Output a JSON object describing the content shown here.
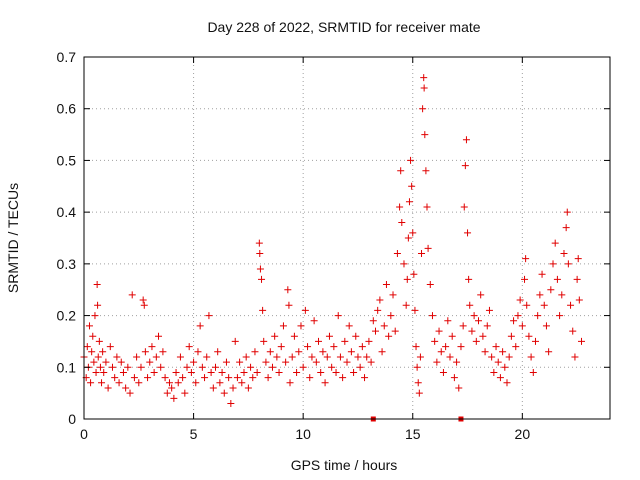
{
  "chart_data": {
    "type": "scatter",
    "title": "Day 228 of 2022, SRMTID for receiver mate",
    "xlabel": "GPS time / hours",
    "ylabel": "SRMTID / TECUs",
    "xlim": [
      0,
      24
    ],
    "ylim": [
      0,
      0.7
    ],
    "xticks": [
      0,
      5,
      10,
      15,
      20
    ],
    "yticks": [
      0,
      0.1,
      0.2,
      0.3,
      0.4,
      0.5,
      0.6,
      0.7
    ],
    "xtick_labels": [
      "0",
      "5",
      "10",
      "15",
      "20"
    ],
    "ytick_labels": [
      "0",
      "0.1",
      "0.2",
      "0.3",
      "0.4",
      "0.5",
      "0.6",
      "0.7"
    ],
    "grid": true,
    "marker": "+",
    "color": "#e00000",
    "baseline_markers_x": [
      13.2,
      17.2
    ],
    "series": [
      {
        "name": "SRMTID",
        "points": [
          [
            0.0,
            0.12
          ],
          [
            0.1,
            0.08
          ],
          [
            0.15,
            0.14
          ],
          [
            0.2,
            0.1
          ],
          [
            0.25,
            0.18
          ],
          [
            0.3,
            0.07
          ],
          [
            0.35,
            0.13
          ],
          [
            0.4,
            0.16
          ],
          [
            0.45,
            0.11
          ],
          [
            0.5,
            0.2
          ],
          [
            0.55,
            0.09
          ],
          [
            0.6,
            0.26
          ],
          [
            0.62,
            0.22
          ],
          [
            0.65,
            0.12
          ],
          [
            0.7,
            0.15
          ],
          [
            0.75,
            0.1
          ],
          [
            0.8,
            0.07
          ],
          [
            0.85,
            0.13
          ],
          [
            0.9,
            0.09
          ],
          [
            1.0,
            0.11
          ],
          [
            1.1,
            0.06
          ],
          [
            1.2,
            0.14
          ],
          [
            1.3,
            0.1
          ],
          [
            1.4,
            0.08
          ],
          [
            1.5,
            0.12
          ],
          [
            1.6,
            0.07
          ],
          [
            1.7,
            0.11
          ],
          [
            1.8,
            0.09
          ],
          [
            1.9,
            0.06
          ],
          [
            2.0,
            0.1
          ],
          [
            2.1,
            0.05
          ],
          [
            2.2,
            0.24
          ],
          [
            2.3,
            0.08
          ],
          [
            2.4,
            0.12
          ],
          [
            2.5,
            0.07
          ],
          [
            2.6,
            0.1
          ],
          [
            2.7,
            0.23
          ],
          [
            2.75,
            0.22
          ],
          [
            2.8,
            0.13
          ],
          [
            2.9,
            0.08
          ],
          [
            3.0,
            0.11
          ],
          [
            3.1,
            0.14
          ],
          [
            3.2,
            0.09
          ],
          [
            3.3,
            0.12
          ],
          [
            3.4,
            0.16
          ],
          [
            3.5,
            0.1
          ],
          [
            3.6,
            0.13
          ],
          [
            3.7,
            0.08
          ],
          [
            3.8,
            0.05
          ],
          [
            3.9,
            0.07
          ],
          [
            4.0,
            0.06
          ],
          [
            4.1,
            0.04
          ],
          [
            4.2,
            0.09
          ],
          [
            4.3,
            0.07
          ],
          [
            4.4,
            0.12
          ],
          [
            4.5,
            0.08
          ],
          [
            4.6,
            0.05
          ],
          [
            4.7,
            0.1
          ],
          [
            4.8,
            0.14
          ],
          [
            4.9,
            0.09
          ],
          [
            5.0,
            0.11
          ],
          [
            5.1,
            0.07
          ],
          [
            5.2,
            0.13
          ],
          [
            5.3,
            0.18
          ],
          [
            5.4,
            0.1
          ],
          [
            5.5,
            0.08
          ],
          [
            5.6,
            0.12
          ],
          [
            5.7,
            0.2
          ],
          [
            5.8,
            0.09
          ],
          [
            5.9,
            0.06
          ],
          [
            6.0,
            0.1
          ],
          [
            6.1,
            0.13
          ],
          [
            6.2,
            0.07
          ],
          [
            6.3,
            0.09
          ],
          [
            6.4,
            0.05
          ],
          [
            6.5,
            0.11
          ],
          [
            6.6,
            0.08
          ],
          [
            6.7,
            0.03
          ],
          [
            6.8,
            0.06
          ],
          [
            6.9,
            0.15
          ],
          [
            7.0,
            0.08
          ],
          [
            7.1,
            0.11
          ],
          [
            7.2,
            0.07
          ],
          [
            7.3,
            0.09
          ],
          [
            7.4,
            0.12
          ],
          [
            7.5,
            0.06
          ],
          [
            7.6,
            0.1
          ],
          [
            7.7,
            0.08
          ],
          [
            7.8,
            0.13
          ],
          [
            7.9,
            0.09
          ],
          [
            8.0,
            0.34
          ],
          [
            8.02,
            0.32
          ],
          [
            8.05,
            0.29
          ],
          [
            8.1,
            0.27
          ],
          [
            8.15,
            0.21
          ],
          [
            8.2,
            0.15
          ],
          [
            8.3,
            0.11
          ],
          [
            8.4,
            0.08
          ],
          [
            8.5,
            0.13
          ],
          [
            8.6,
            0.1
          ],
          [
            8.7,
            0.16
          ],
          [
            8.8,
            0.12
          ],
          [
            8.9,
            0.09
          ],
          [
            9.0,
            0.14
          ],
          [
            9.1,
            0.18
          ],
          [
            9.2,
            0.11
          ],
          [
            9.3,
            0.25
          ],
          [
            9.35,
            0.22
          ],
          [
            9.4,
            0.07
          ],
          [
            9.5,
            0.12
          ],
          [
            9.6,
            0.16
          ],
          [
            9.7,
            0.09
          ],
          [
            9.8,
            0.13
          ],
          [
            9.9,
            0.18
          ],
          [
            10.0,
            0.1
          ],
          [
            10.1,
            0.21
          ],
          [
            10.2,
            0.14
          ],
          [
            10.3,
            0.08
          ],
          [
            10.4,
            0.12
          ],
          [
            10.5,
            0.19
          ],
          [
            10.6,
            0.11
          ],
          [
            10.7,
            0.15
          ],
          [
            10.8,
            0.09
          ],
          [
            10.9,
            0.13
          ],
          [
            11.0,
            0.07
          ],
          [
            11.1,
            0.12
          ],
          [
            11.2,
            0.16
          ],
          [
            11.3,
            0.1
          ],
          [
            11.4,
            0.14
          ],
          [
            11.5,
            0.09
          ],
          [
            11.6,
            0.2
          ],
          [
            11.7,
            0.12
          ],
          [
            11.8,
            0.08
          ],
          [
            11.9,
            0.15
          ],
          [
            12.0,
            0.11
          ],
          [
            12.1,
            0.18
          ],
          [
            12.2,
            0.13
          ],
          [
            12.3,
            0.09
          ],
          [
            12.4,
            0.16
          ],
          [
            12.5,
            0.12
          ],
          [
            12.6,
            0.1
          ],
          [
            12.7,
            0.14
          ],
          [
            12.8,
            0.08
          ],
          [
            12.9,
            0.12
          ],
          [
            13.0,
            0.15
          ],
          [
            13.1,
            0.11
          ],
          [
            13.2,
            0.19
          ],
          [
            13.3,
            0.17
          ],
          [
            13.4,
            0.21
          ],
          [
            13.5,
            0.23
          ],
          [
            13.6,
            0.13
          ],
          [
            13.7,
            0.18
          ],
          [
            13.8,
            0.26
          ],
          [
            13.9,
            0.16
          ],
          [
            14.0,
            0.2
          ],
          [
            14.1,
            0.24
          ],
          [
            14.2,
            0.17
          ],
          [
            14.3,
            0.32
          ],
          [
            14.4,
            0.41
          ],
          [
            14.45,
            0.48
          ],
          [
            14.5,
            0.38
          ],
          [
            14.6,
            0.3
          ],
          [
            14.7,
            0.22
          ],
          [
            14.75,
            0.27
          ],
          [
            14.8,
            0.35
          ],
          [
            14.85,
            0.42
          ],
          [
            14.9,
            0.5
          ],
          [
            14.95,
            0.45
          ],
          [
            15.0,
            0.36
          ],
          [
            15.05,
            0.28
          ],
          [
            15.1,
            0.21
          ],
          [
            15.15,
            0.14
          ],
          [
            15.2,
            0.1
          ],
          [
            15.25,
            0.07
          ],
          [
            15.3,
            0.05
          ],
          [
            15.35,
            0.12
          ],
          [
            15.4,
            0.32
          ],
          [
            15.45,
            0.6
          ],
          [
            15.5,
            0.66
          ],
          [
            15.52,
            0.64
          ],
          [
            15.55,
            0.55
          ],
          [
            15.6,
            0.48
          ],
          [
            15.65,
            0.41
          ],
          [
            15.7,
            0.33
          ],
          [
            15.8,
            0.26
          ],
          [
            15.9,
            0.2
          ],
          [
            16.0,
            0.15
          ],
          [
            16.1,
            0.11
          ],
          [
            16.2,
            0.17
          ],
          [
            16.3,
            0.13
          ],
          [
            16.4,
            0.09
          ],
          [
            16.5,
            0.14
          ],
          [
            16.6,
            0.19
          ],
          [
            16.7,
            0.12
          ],
          [
            16.8,
            0.16
          ],
          [
            16.9,
            0.08
          ],
          [
            17.0,
            0.11
          ],
          [
            17.1,
            0.06
          ],
          [
            17.2,
            0.14
          ],
          [
            17.3,
            0.18
          ],
          [
            17.35,
            0.41
          ],
          [
            17.4,
            0.49
          ],
          [
            17.45,
            0.54
          ],
          [
            17.5,
            0.36
          ],
          [
            17.55,
            0.27
          ],
          [
            17.6,
            0.22
          ],
          [
            17.7,
            0.17
          ],
          [
            17.8,
            0.2
          ],
          [
            17.9,
            0.15
          ],
          [
            18.0,
            0.19
          ],
          [
            18.1,
            0.24
          ],
          [
            18.2,
            0.16
          ],
          [
            18.3,
            0.13
          ],
          [
            18.4,
            0.18
          ],
          [
            18.5,
            0.21
          ],
          [
            18.6,
            0.12
          ],
          [
            18.7,
            0.09
          ],
          [
            18.8,
            0.14
          ],
          [
            18.9,
            0.11
          ],
          [
            19.0,
            0.08
          ],
          [
            19.1,
            0.13
          ],
          [
            19.2,
            0.1
          ],
          [
            19.3,
            0.07
          ],
          [
            19.4,
            0.12
          ],
          [
            19.5,
            0.16
          ],
          [
            19.6,
            0.19
          ],
          [
            19.7,
            0.14
          ],
          [
            19.8,
            0.2
          ],
          [
            19.9,
            0.23
          ],
          [
            20.0,
            0.18
          ],
          [
            20.1,
            0.27
          ],
          [
            20.15,
            0.31
          ],
          [
            20.2,
            0.22
          ],
          [
            20.3,
            0.16
          ],
          [
            20.4,
            0.12
          ],
          [
            20.5,
            0.09
          ],
          [
            20.6,
            0.15
          ],
          [
            20.7,
            0.2
          ],
          [
            20.8,
            0.24
          ],
          [
            20.9,
            0.28
          ],
          [
            21.0,
            0.22
          ],
          [
            21.1,
            0.18
          ],
          [
            21.2,
            0.13
          ],
          [
            21.3,
            0.25
          ],
          [
            21.4,
            0.3
          ],
          [
            21.5,
            0.34
          ],
          [
            21.6,
            0.27
          ],
          [
            21.7,
            0.2
          ],
          [
            21.8,
            0.24
          ],
          [
            21.9,
            0.32
          ],
          [
            22.0,
            0.37
          ],
          [
            22.05,
            0.4
          ],
          [
            22.1,
            0.3
          ],
          [
            22.2,
            0.22
          ],
          [
            22.3,
            0.17
          ],
          [
            22.4,
            0.12
          ],
          [
            22.5,
            0.27
          ],
          [
            22.55,
            0.31
          ],
          [
            22.6,
            0.23
          ],
          [
            22.7,
            0.15
          ]
        ]
      }
    ]
  }
}
